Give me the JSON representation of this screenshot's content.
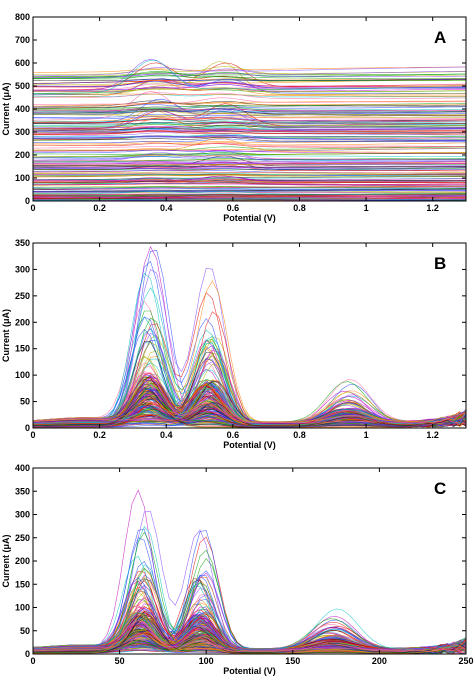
{
  "chart_data": [
    {
      "panel_label": "A",
      "type": "line",
      "xlabel": "Potential (V)",
      "ylabel": "Current (μA)",
      "xlim": [
        0,
        1.3
      ],
      "ylim": [
        0,
        800
      ],
      "x_ticks": [
        0,
        0.2,
        0.4,
        0.6,
        0.8,
        1,
        1.2
      ],
      "x_tick_labels": [
        "0",
        "0.2",
        "0.4",
        "0.6",
        "0.8",
        "1",
        "1.2"
      ],
      "y_ticks": [
        0,
        100,
        200,
        300,
        400,
        500,
        600,
        700,
        800
      ],
      "y_tick_labels": [
        "0",
        "100",
        "200",
        "300",
        "400",
        "500",
        "600",
        "700",
        "800"
      ],
      "grid": false,
      "legend": "none",
      "n_curves": 220,
      "description_of_data": "raw voltammograms; high baselines with peaks near 0.37 V and 0.57 V",
      "peaks": [
        {
          "x": 0.37,
          "y_max": 610
        },
        {
          "x": 0.57,
          "y_max": 600
        }
      ],
      "max_current": 610
    },
    {
      "panel_label": "B",
      "type": "line",
      "xlabel": "Potential (V)",
      "ylabel": "Current (μA)",
      "xlim": [
        0,
        1.3
      ],
      "ylim": [
        0,
        350
      ],
      "x_ticks": [
        0,
        0.2,
        0.4,
        0.6,
        0.8,
        1,
        1.2
      ],
      "x_tick_labels": [
        "0",
        "0.2",
        "0.4",
        "0.6",
        "0.8",
        "1",
        "1.2"
      ],
      "y_ticks": [
        0,
        50,
        100,
        150,
        200,
        250,
        300,
        350
      ],
      "y_tick_labels": [
        "0",
        "50",
        "100",
        "150",
        "200",
        "250",
        "300",
        "350"
      ],
      "grid": false,
      "legend": "none",
      "n_curves": 220,
      "peaks": [
        {
          "x": 0.35,
          "y_max": 345
        },
        {
          "x": 0.53,
          "y_max": 305
        },
        {
          "x": 0.95,
          "y_max": 95
        }
      ]
    },
    {
      "panel_label": "C",
      "type": "line",
      "xlabel": "Potential (V)",
      "ylabel": "Current (μA)",
      "xlim": [
        0,
        250
      ],
      "ylim": [
        0,
        400
      ],
      "x_ticks": [
        0,
        50,
        100,
        150,
        200,
        250
      ],
      "x_tick_labels": [
        "0",
        "50",
        "100",
        "150",
        "200",
        "250"
      ],
      "y_ticks": [
        0,
        50,
        100,
        150,
        200,
        250,
        300,
        350,
        400
      ],
      "y_tick_labels": [
        "0",
        "50",
        "100",
        "150",
        "200",
        "250",
        "300",
        "350",
        "400"
      ],
      "grid": false,
      "legend": "none",
      "n_curves": 220,
      "peaks": [
        {
          "x": 63,
          "y_max": 345
        },
        {
          "x": 97,
          "y_max": 305
        },
        {
          "x": 173,
          "y_max": 90
        }
      ]
    }
  ],
  "palette": [
    "#1f3fff",
    "#00a000",
    "#e00000",
    "#00c0c0",
    "#c000c0",
    "#b0b000",
    "#202020",
    "#ff8000",
    "#8040ff",
    "#ff60a0"
  ]
}
